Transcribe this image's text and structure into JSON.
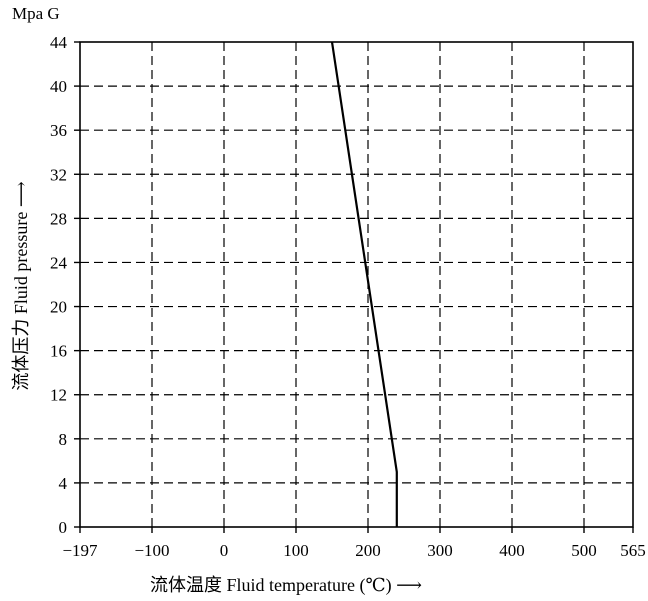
{
  "chart_data": {
    "type": "line",
    "title": "",
    "xlabel": "流体温度  Fluid temperature (℃)",
    "ylabel": "流体压力  Fluid pressure",
    "x_arrow": "⟶",
    "y_arrow": "⟶",
    "y_unit": "Mpa G",
    "x_ticks": [
      -197,
      -100,
      0,
      100,
      200,
      300,
      400,
      500,
      565
    ],
    "y_ticks": [
      0,
      4,
      8,
      12,
      16,
      20,
      24,
      28,
      32,
      36,
      40,
      44
    ],
    "xlim": [
      -197,
      565
    ],
    "ylim": [
      0,
      44
    ],
    "grid": true,
    "series": [
      {
        "points": [
          [
            150,
            44
          ],
          [
            240,
            5
          ],
          [
            240,
            0
          ]
        ],
        "color": "#000000"
      }
    ]
  }
}
